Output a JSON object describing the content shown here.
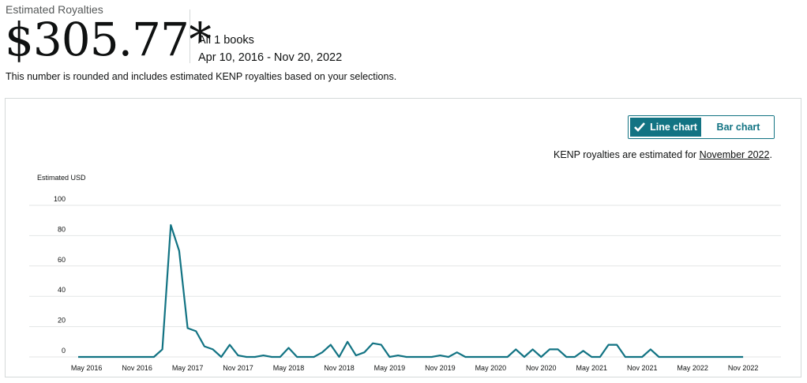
{
  "header": {
    "title": "Estimated Royalties",
    "amount": "$305.77*",
    "books": "All 1 books",
    "date_range": "Apr 10, 2016 - Nov 20, 2022",
    "note": "This number is rounded and includes estimated KENP royalties based on your selections."
  },
  "toggle": {
    "line_label": "Line chart",
    "bar_label": "Bar chart",
    "selected": "line"
  },
  "kenp": {
    "prefix": "KENP royalties are estimated for ",
    "month": "November 2022",
    "suffix": "."
  },
  "colors": {
    "line": "#127383",
    "accent": "#127383",
    "grid": "#e3e6e6"
  },
  "chart_data": {
    "type": "line",
    "title": "",
    "ylabel": "Estimated USD",
    "xlabel": "",
    "ylim": [
      0,
      100
    ],
    "y_ticks": [
      0,
      20,
      40,
      60,
      80,
      100
    ],
    "x_tick_labels": [
      "May 2016",
      "Nov 2016",
      "May 2017",
      "Nov 2017",
      "May 2018",
      "Nov 2018",
      "May 2019",
      "Nov 2019",
      "May 2020",
      "Nov 2020",
      "May 2021",
      "Nov 2021",
      "May 2022",
      "Nov 2022"
    ],
    "grid": true,
    "series": [
      {
        "x": [
          "Apr 2016",
          "May 2016",
          "Jun 2016",
          "Jul 2016",
          "Aug 2016",
          "Sep 2016",
          "Oct 2016",
          "Nov 2016",
          "Dec 2016",
          "Jan 2017",
          "Feb 2017",
          "Mar 2017",
          "Apr 2017",
          "May 2017",
          "Jun 2017",
          "Jul 2017",
          "Aug 2017",
          "Sep 2017",
          "Oct 2017",
          "Nov 2017",
          "Dec 2017",
          "Jan 2018",
          "Feb 2018",
          "Mar 2018",
          "Apr 2018",
          "May 2018",
          "Jun 2018",
          "Jul 2018",
          "Aug 2018",
          "Sep 2018",
          "Oct 2018",
          "Nov 2018",
          "Dec 2018",
          "Jan 2019",
          "Feb 2019",
          "Mar 2019",
          "Apr 2019",
          "May 2019",
          "Jun 2019",
          "Jul 2019",
          "Aug 2019",
          "Sep 2019",
          "Oct 2019",
          "Nov 2019",
          "Dec 2019",
          "Jan 2020",
          "Feb 2020",
          "Mar 2020",
          "Apr 2020",
          "May 2020",
          "Jun 2020",
          "Jul 2020",
          "Aug 2020",
          "Sep 2020",
          "Oct 2020",
          "Nov 2020",
          "Dec 2020",
          "Jan 2021",
          "Feb 2021",
          "Mar 2021",
          "Apr 2021",
          "May 2021",
          "Jun 2021",
          "Jul 2021",
          "Aug 2021",
          "Sep 2021",
          "Oct 2021",
          "Nov 2021",
          "Dec 2021",
          "Jan 2022",
          "Feb 2022",
          "Mar 2022",
          "Apr 2022",
          "May 2022",
          "Jun 2022",
          "Jul 2022",
          "Aug 2022",
          "Sep 2022",
          "Oct 2022",
          "Nov 2022"
        ],
        "values": [
          0,
          0,
          0,
          0,
          0,
          0,
          0,
          0,
          0,
          0,
          5,
          87,
          70,
          19,
          17,
          7,
          5,
          0,
          8,
          1,
          0,
          0,
          1,
          0,
          0,
          6,
          0,
          0,
          0,
          3,
          8,
          0,
          10,
          1,
          3,
          9,
          8,
          0,
          1,
          0,
          0,
          0,
          0,
          1,
          0,
          3,
          0,
          0,
          0,
          0,
          0,
          0,
          5,
          0,
          5,
          0,
          5,
          5,
          0,
          0,
          4,
          0,
          0,
          8,
          8,
          0,
          0,
          0,
          5,
          0,
          0,
          0,
          0,
          0,
          0,
          0,
          0,
          0,
          0,
          0
        ]
      }
    ]
  }
}
